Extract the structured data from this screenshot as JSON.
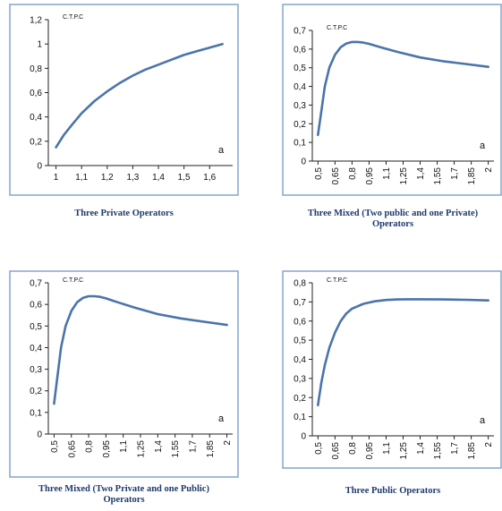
{
  "chart_data": [
    {
      "type": "line",
      "title": "C.T.P.C",
      "xlabel": "a",
      "caption": [
        "Three Private Operators"
      ],
      "x_ticks": [
        "1",
        "1,1",
        "1,2",
        "1,3",
        "1,4",
        "1,5",
        "1,6"
      ],
      "y_ticks": [
        "0",
        "0,2",
        "0,4",
        "0,6",
        "0,8",
        "1",
        "1,2"
      ],
      "xlim": [
        0.97,
        1.69
      ],
      "ylim": [
        0,
        1.2
      ],
      "tick_rotation": 0,
      "series": [
        {
          "x": [
            1.0,
            1.03,
            1.06,
            1.1,
            1.15,
            1.2,
            1.25,
            1.3,
            1.35,
            1.4,
            1.45,
            1.5,
            1.55,
            1.6,
            1.65
          ],
          "y": [
            0.15,
            0.25,
            0.33,
            0.43,
            0.53,
            0.61,
            0.68,
            0.74,
            0.79,
            0.83,
            0.87,
            0.91,
            0.94,
            0.97,
            1.0
          ]
        }
      ]
    },
    {
      "type": "line",
      "title": "C.T.P.C",
      "xlabel": "a",
      "caption": [
        "Three Mixed (Two public and one Private)",
        "Operators"
      ],
      "x_ticks": [
        "0,5",
        "0,65",
        "0,8",
        "0,95",
        "1,1",
        "1,25",
        "1,4",
        "1,55",
        "1,7",
        "1,85",
        "2"
      ],
      "y_ticks": [
        "0",
        "0,1",
        "0,2",
        "0,3",
        "0,4",
        "0,5",
        "0,6",
        "0,7"
      ],
      "xlim": [
        0.45,
        2.05
      ],
      "ylim": [
        0,
        0.7
      ],
      "tick_rotation": -90,
      "series": [
        {
          "x": [
            0.5,
            0.53,
            0.56,
            0.6,
            0.65,
            0.7,
            0.75,
            0.8,
            0.85,
            0.9,
            0.95,
            1.05,
            1.2,
            1.4,
            1.6,
            1.8,
            2.0
          ],
          "y": [
            0.14,
            0.27,
            0.4,
            0.5,
            0.57,
            0.61,
            0.63,
            0.638,
            0.638,
            0.635,
            0.628,
            0.61,
            0.585,
            0.555,
            0.535,
            0.52,
            0.505
          ]
        }
      ]
    },
    {
      "type": "line",
      "title": "C.T.P.C",
      "xlabel": "a",
      "caption": [
        "Three Mixed (Two Private and one Public)",
        "Operators"
      ],
      "x_ticks": [
        "0,5",
        "0,65",
        "0,8",
        "0,95",
        "1,1",
        "1,25",
        "1,4",
        "1,55",
        "1,7",
        "1,85",
        "2"
      ],
      "y_ticks": [
        "0",
        "0,1",
        "0,2",
        "0,3",
        "0,4",
        "0,5",
        "0,6",
        "0,7"
      ],
      "xlim": [
        0.45,
        2.05
      ],
      "ylim": [
        0,
        0.7
      ],
      "tick_rotation": -90,
      "series": [
        {
          "x": [
            0.5,
            0.53,
            0.56,
            0.6,
            0.65,
            0.7,
            0.75,
            0.8,
            0.85,
            0.9,
            0.95,
            1.05,
            1.2,
            1.4,
            1.6,
            1.8,
            2.0
          ],
          "y": [
            0.14,
            0.27,
            0.4,
            0.5,
            0.57,
            0.61,
            0.63,
            0.638,
            0.638,
            0.635,
            0.628,
            0.61,
            0.585,
            0.555,
            0.535,
            0.52,
            0.505
          ]
        }
      ]
    },
    {
      "type": "line",
      "title": "C.T.P.C",
      "xlabel": "a",
      "caption": [
        "Three Public Operators"
      ],
      "x_ticks": [
        "0,5",
        "0,65",
        "0,8",
        "0,95",
        "1,1",
        "1,25",
        "1,4",
        "1,55",
        "1,7",
        "1,85",
        "2"
      ],
      "y_ticks": [
        "0",
        "0,1",
        "0,2",
        "0,3",
        "0,4",
        "0,5",
        "0,6",
        "0,7",
        "0,8"
      ],
      "xlim": [
        0.45,
        2.05
      ],
      "ylim": [
        0,
        0.8
      ],
      "tick_rotation": -90,
      "series": [
        {
          "x": [
            0.5,
            0.53,
            0.56,
            0.6,
            0.65,
            0.7,
            0.75,
            0.8,
            0.9,
            1.0,
            1.1,
            1.2,
            1.3,
            1.4,
            1.6,
            1.8,
            2.0
          ],
          "y": [
            0.16,
            0.28,
            0.37,
            0.46,
            0.54,
            0.6,
            0.64,
            0.665,
            0.69,
            0.703,
            0.71,
            0.713,
            0.714,
            0.714,
            0.713,
            0.711,
            0.708
          ]
        }
      ]
    }
  ]
}
